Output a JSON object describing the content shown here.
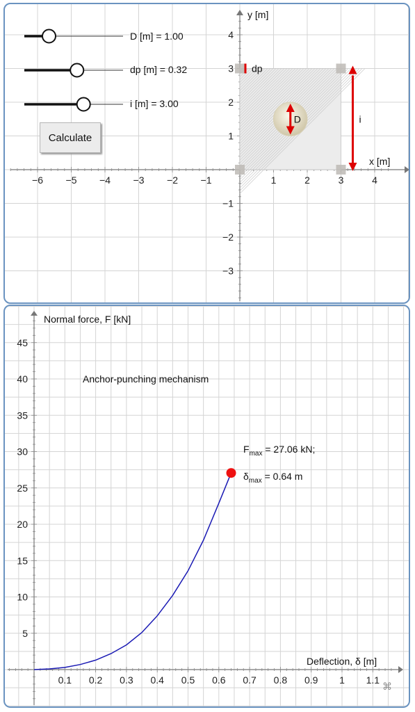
{
  "top_panel": {
    "axes": {
      "x_label": "x [m]",
      "y_label": "y [m]",
      "x_ticks": [
        "−6",
        "−5",
        "−4",
        "−3",
        "−2",
        "−1",
        "1",
        "2",
        "3",
        "4"
      ],
      "y_ticks": [
        "4",
        "3",
        "2",
        "1",
        "−1",
        "−2",
        "−3"
      ]
    },
    "sliders": [
      {
        "label": "D [m] = 1.00",
        "value": 1.0,
        "min": 0,
        "max": 4
      },
      {
        "label": "dp [m] = 0.32",
        "value": 0.32,
        "min": 0,
        "max": 0.6
      },
      {
        "label": "i [m] = 3.00",
        "value": 3.0,
        "min": 0,
        "max": 5
      }
    ],
    "calculate_label": "Calculate",
    "annotations": {
      "dp": "dp",
      "D": "D",
      "i": "i"
    },
    "geometry_values": {
      "D": 1.0,
      "dp": 0.32,
      "i": 3.0,
      "anchor_center": [
        1.5,
        1.5
      ],
      "grid_extent": [
        0,
        3
      ]
    },
    "colors": {
      "arrow": "#dd0000",
      "grid_fill": "#cfcfcf",
      "handle": "#bdbab5"
    }
  },
  "bottom_panel": {
    "title": "Anchor-punching mechanism",
    "result_line1": {
      "main": "F",
      "sub": "max",
      "rest": " = 27.06 kN;"
    },
    "result_line2": {
      "main": "δ",
      "sub": "max",
      "rest": " = 0.64 m"
    },
    "footer_icon": "command-icon",
    "footer_glyph": "⌘"
  },
  "chart_data": {
    "type": "line",
    "title": "Anchor-punching mechanism",
    "xlabel": "Deflection, δ [m]",
    "ylabel": "Normal force, F [kN]",
    "x_ticks": [
      "0.1",
      "0.2",
      "0.3",
      "0.4",
      "0.5",
      "0.6",
      "0.7",
      "0.8",
      "0.9",
      "1",
      "1.1"
    ],
    "y_ticks": [
      "5",
      "10",
      "15",
      "20",
      "25",
      "30",
      "35",
      "40",
      "45"
    ],
    "xlim": [
      -0.08,
      1.2
    ],
    "ylim": [
      -5,
      49
    ],
    "grid": true,
    "series": [
      {
        "color": "#1a1ab4",
        "x": [
          0,
          0.05,
          0.1,
          0.15,
          0.2,
          0.25,
          0.3,
          0.35,
          0.4,
          0.45,
          0.5,
          0.55,
          0.6,
          0.64
        ],
        "y": [
          0,
          0.1,
          0.3,
          0.7,
          1.3,
          2.2,
          3.4,
          5.1,
          7.4,
          10.2,
          13.6,
          17.8,
          22.9,
          27.06
        ]
      }
    ],
    "highlight_point": {
      "x": 0.64,
      "y": 27.06,
      "color": "#ee1111"
    }
  }
}
